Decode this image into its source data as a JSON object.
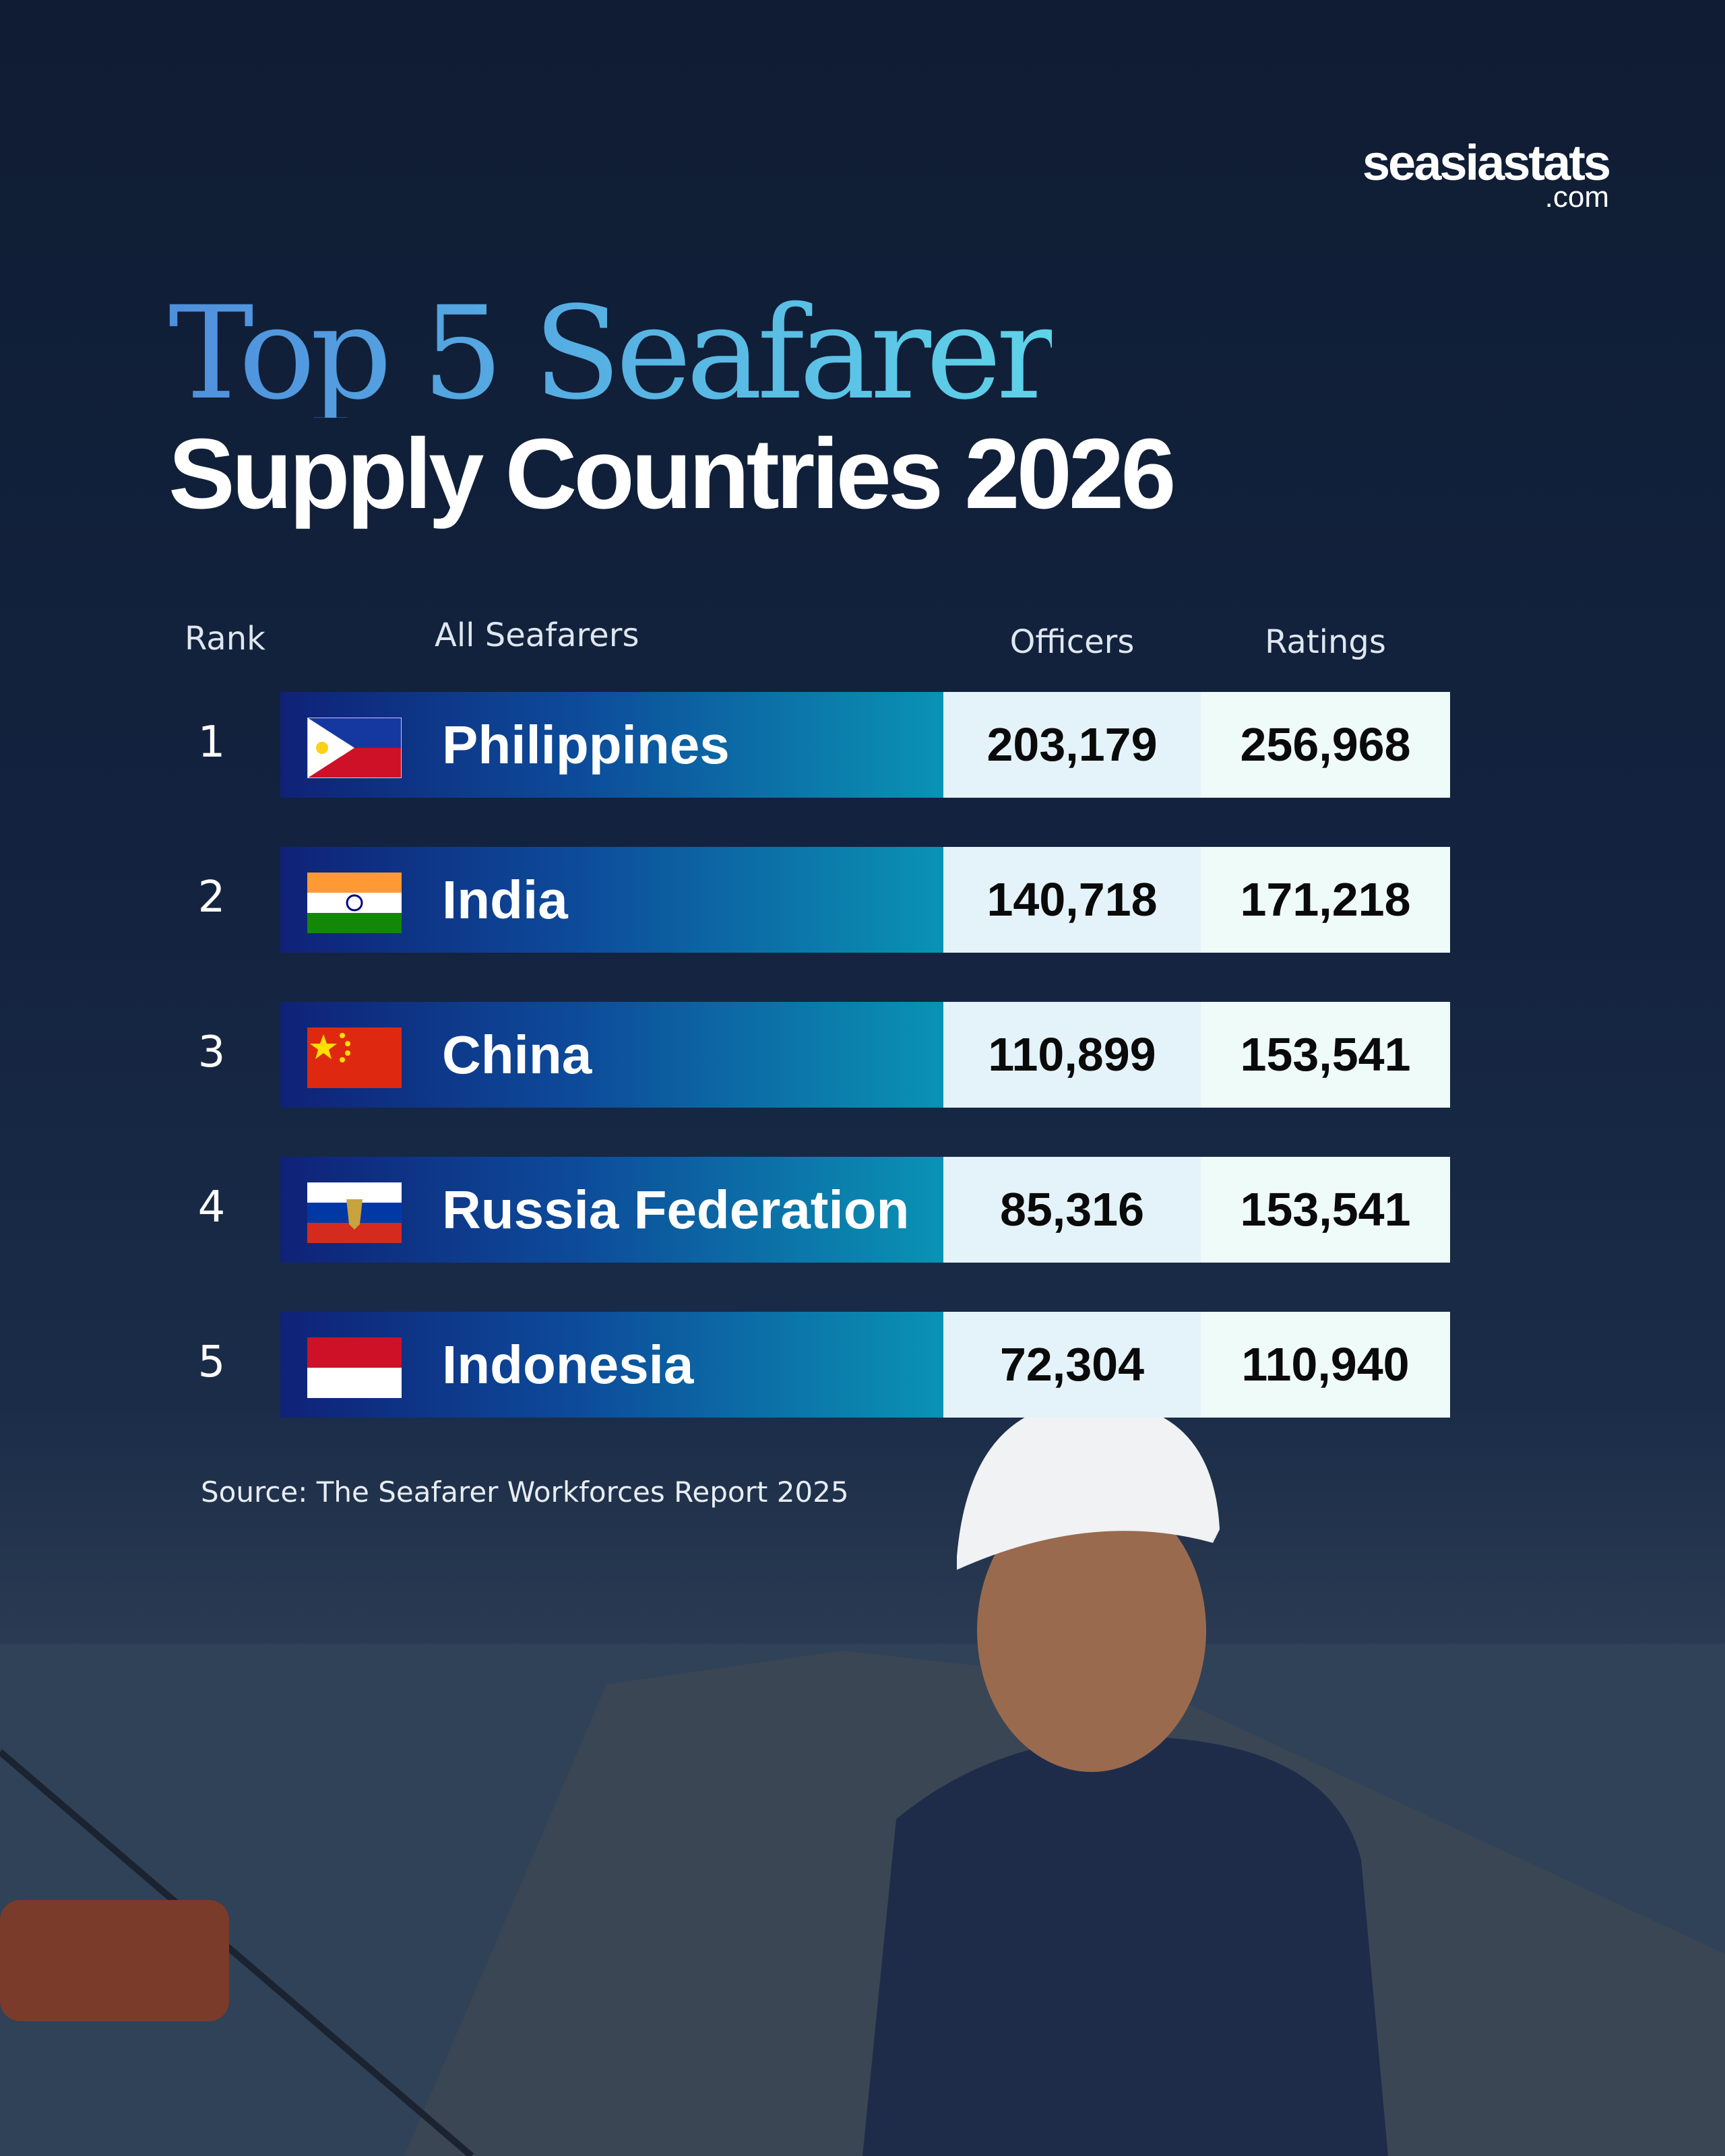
{
  "brand": {
    "name": "seasiastats",
    "suffix": ".com"
  },
  "title": {
    "line1": "Top 5 Seafarer",
    "line2": "Supply Countries 2026"
  },
  "table": {
    "headers": [
      "Rank",
      "All Seafarers",
      "Officers",
      "Ratings"
    ],
    "rows": [
      [
        "1",
        "Philippines",
        "203,179",
        "256,968"
      ],
      [
        "2",
        "India",
        "140,718",
        "171,218"
      ],
      [
        "3",
        "China",
        "110,899",
        "153,541"
      ],
      [
        "4",
        "Russia Federation",
        "85,316",
        "153,541"
      ],
      [
        "5",
        "Indonesia",
        "72,304",
        "110,940"
      ]
    ]
  },
  "source": "Source: The Seafarer Workforces Report 2025"
}
